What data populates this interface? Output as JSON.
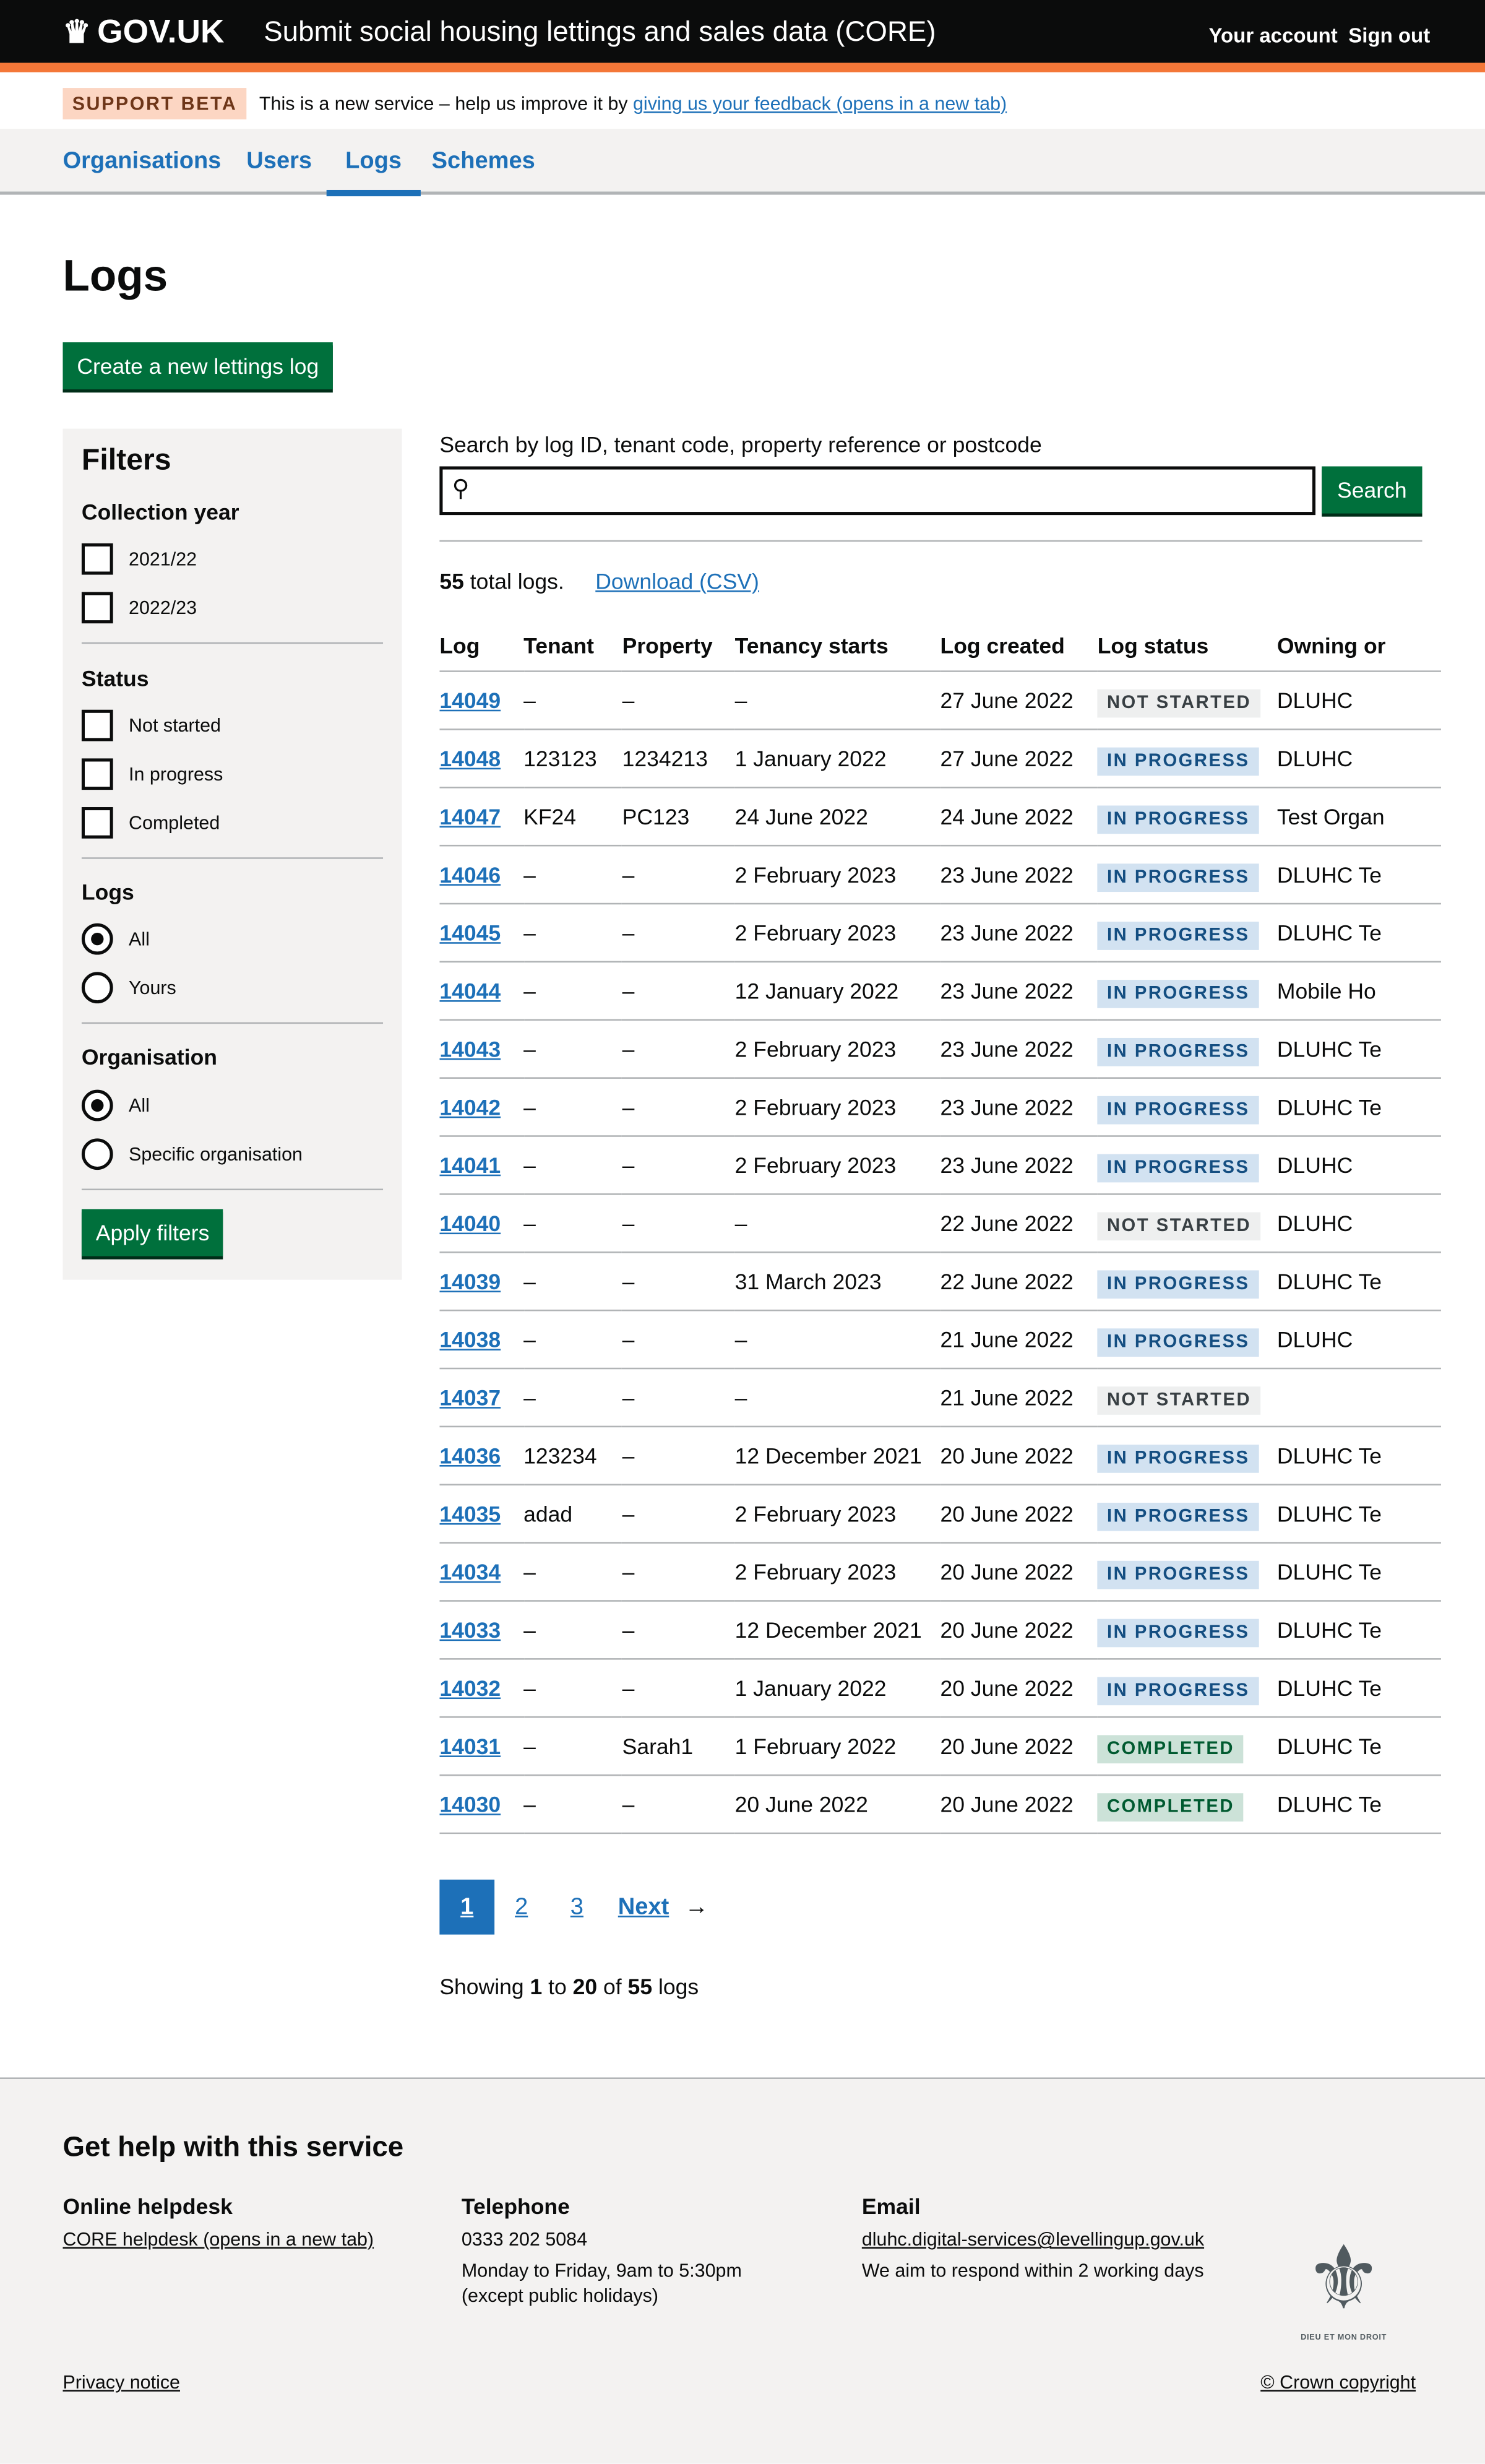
{
  "header": {
    "logo": "GOV.UK",
    "service": "Submit social housing lettings and sales data (CORE)",
    "account": "Your account",
    "sign_out": "Sign out"
  },
  "banner": {
    "tag": "SUPPORT BETA",
    "text": "This is a new service – help us improve it by ",
    "link": "giving us your feedback (opens in a new tab)"
  },
  "nav": {
    "items": [
      {
        "label": "Organisations"
      },
      {
        "label": "Users"
      },
      {
        "label": "Logs",
        "active": true
      },
      {
        "label": "Schemes"
      }
    ]
  },
  "page": {
    "title": "Logs",
    "create_button": "Create a new lettings log"
  },
  "filters": {
    "title": "Filters",
    "collection_year": {
      "label": "Collection year",
      "options": [
        "2021/22",
        "2022/23"
      ]
    },
    "status": {
      "label": "Status",
      "options": [
        "Not started",
        "In progress",
        "Completed"
      ]
    },
    "logs": {
      "label": "Logs",
      "options": [
        "All",
        "Yours"
      ],
      "selected": "All"
    },
    "organisation": {
      "label": "Organisation",
      "options": [
        "All",
        "Specific organisation"
      ],
      "selected": "All"
    },
    "apply": "Apply filters"
  },
  "search": {
    "label": "Search by log ID, tenant code, property reference or postcode",
    "value": "",
    "button": "Search"
  },
  "summary": {
    "count": "55",
    "count_suffix": " total logs.",
    "download": "Download (CSV)"
  },
  "table": {
    "headers": [
      "Log",
      "Tenant",
      "Property",
      "Tenancy starts",
      "Log created",
      "Log status",
      "Owning or"
    ],
    "rows": [
      [
        "14049",
        "–",
        "–",
        "–",
        "27 June 2022",
        "NOT STARTED",
        "DLUHC"
      ],
      [
        "14048",
        "123123",
        "1234213",
        "1 January 2022",
        "27 June 2022",
        "IN PROGRESS",
        "DLUHC"
      ],
      [
        "14047",
        "KF24",
        "PC123",
        "24 June 2022",
        "24 June 2022",
        "IN PROGRESS",
        "Test Organ"
      ],
      [
        "14046",
        "–",
        "–",
        "2 February 2023",
        "23 June 2022",
        "IN PROGRESS",
        "DLUHC Te"
      ],
      [
        "14045",
        "–",
        "–",
        "2 February 2023",
        "23 June 2022",
        "IN PROGRESS",
        "DLUHC Te"
      ],
      [
        "14044",
        "–",
        "–",
        "12 January 2022",
        "23 June 2022",
        "IN PROGRESS",
        "Mobile Ho"
      ],
      [
        "14043",
        "–",
        "–",
        "2 February 2023",
        "23 June 2022",
        "IN PROGRESS",
        "DLUHC Te"
      ],
      [
        "14042",
        "–",
        "–",
        "2 February 2023",
        "23 June 2022",
        "IN PROGRESS",
        "DLUHC Te"
      ],
      [
        "14041",
        "–",
        "–",
        "2 February 2023",
        "23 June 2022",
        "IN PROGRESS",
        "DLUHC"
      ],
      [
        "14040",
        "–",
        "–",
        "–",
        "22 June 2022",
        "NOT STARTED",
        "DLUHC"
      ],
      [
        "14039",
        "–",
        "–",
        "31 March 2023",
        "22 June 2022",
        "IN PROGRESS",
        "DLUHC Te"
      ],
      [
        "14038",
        "–",
        "–",
        "–",
        "21 June 2022",
        "IN PROGRESS",
        "DLUHC"
      ],
      [
        "14037",
        "–",
        "–",
        "–",
        "21 June 2022",
        "NOT STARTED",
        ""
      ],
      [
        "14036",
        "123234",
        "–",
        "12 December 2021",
        "20 June 2022",
        "IN PROGRESS",
        "DLUHC Te"
      ],
      [
        "14035",
        "adad",
        "–",
        "2 February 2023",
        "20 June 2022",
        "IN PROGRESS",
        "DLUHC Te"
      ],
      [
        "14034",
        "–",
        "–",
        "2 February 2023",
        "20 June 2022",
        "IN PROGRESS",
        "DLUHC Te"
      ],
      [
        "14033",
        "–",
        "–",
        "12 December 2021",
        "20 June 2022",
        "IN PROGRESS",
        "DLUHC Te"
      ],
      [
        "14032",
        "–",
        "–",
        "1 January 2022",
        "20 June 2022",
        "IN PROGRESS",
        "DLUHC Te"
      ],
      [
        "14031",
        "–",
        "Sarah1",
        "1 February 2022",
        "20 June 2022",
        "COMPLETED",
        "DLUHC Te"
      ],
      [
        "14030",
        "–",
        "–",
        "20 June 2022",
        "20 June 2022",
        "COMPLETED",
        "DLUHC Te"
      ]
    ]
  },
  "status_colors": {
    "NOT STARTED": {
      "bg": "#eeefef",
      "fg": "#383f43"
    },
    "IN PROGRESS": {
      "bg": "#d2e2f1",
      "fg": "#144e81"
    },
    "COMPLETED": {
      "bg": "#cce2d8",
      "fg": "#005a30"
    }
  },
  "pagination": {
    "pages": [
      "1",
      "2",
      "3"
    ],
    "current": "1",
    "next": "Next"
  },
  "showing": {
    "prefix": "Showing ",
    "from": "1",
    "to_word": " to ",
    "to": "20",
    "of_word": " of ",
    "total": "55",
    "suffix": " logs"
  },
  "footer": {
    "title": "Get help with this service",
    "helpdesk": {
      "title": "Online helpdesk",
      "link": "CORE helpdesk (opens in a new tab)"
    },
    "telephone": {
      "title": "Telephone",
      "number": "0333 202 5084",
      "hours": "Monday to Friday, 9am to 5:30pm",
      "note": "(except public holidays)"
    },
    "email": {
      "title": "Email",
      "address": "dluhc.digital-services@levellingup.gov.uk",
      "note": "We aim to respond within 2 working days"
    },
    "privacy": "Privacy notice",
    "copyright": "© Crown copyright",
    "crest_text": "DIEU ET MON DROIT"
  }
}
